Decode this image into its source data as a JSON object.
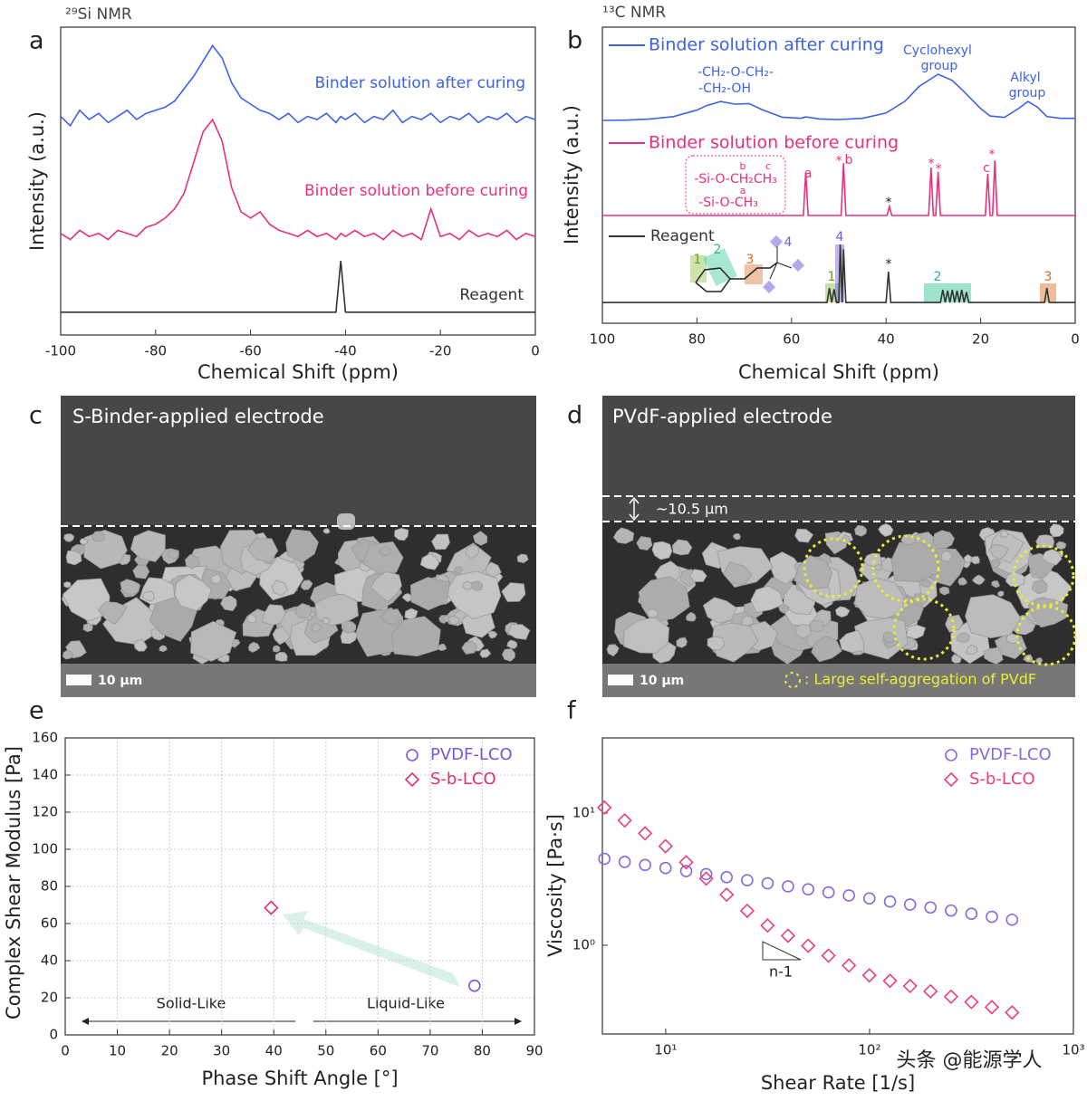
{
  "chart_data": [
    {
      "type": "line",
      "panel": "a",
      "title": "²⁹Si NMR",
      "xlabel": "Chemical Shift (ppm)",
      "ylabel": "Intensity (a.u.)",
      "xlim": [
        -100,
        0
      ],
      "xticks": [
        -100,
        -80,
        -60,
        -40,
        -20,
        0
      ],
      "ylim": [
        0,
        10
      ],
      "series": [
        {
          "name": "Binder solution after curing",
          "color": "#3d62e6",
          "x": [
            -100,
            -98,
            -96,
            -94,
            -92,
            -90,
            -88,
            -86,
            -84,
            -82,
            -80,
            -78,
            -76,
            -74,
            -72,
            -70,
            -68,
            -66,
            -64,
            -62,
            -60,
            -58,
            -56,
            -54,
            -52,
            -50,
            -48,
            -46,
            -44,
            -42,
            -41,
            -40,
            -38,
            -36,
            -34,
            -32,
            -30,
            -28,
            -26,
            -24,
            -22,
            -20,
            -18,
            -16,
            -14,
            -12,
            -10,
            -8,
            -6,
            -4,
            -2,
            0
          ],
          "values": [
            7.1,
            6.8,
            7.3,
            7.0,
            7.2,
            6.9,
            7.1,
            7.3,
            7.0,
            7.2,
            7.3,
            7.4,
            7.6,
            8.0,
            8.4,
            8.9,
            9.4,
            9.0,
            8.2,
            7.7,
            7.5,
            7.3,
            7.2,
            7.0,
            7.2,
            6.9,
            7.1,
            7.0,
            7.2,
            6.9,
            7.1,
            7.0,
            7.2,
            6.9,
            7.1,
            7.0,
            7.3,
            6.9,
            7.1,
            7.0,
            7.2,
            6.9,
            7.1,
            7.0,
            7.2,
            6.9,
            7.1,
            7.0,
            7.2,
            6.9,
            7.1,
            7.0
          ]
        },
        {
          "name": "Binder solution before curing",
          "color": "#e8307f",
          "x": [
            -100,
            -98,
            -96,
            -94,
            -92,
            -90,
            -88,
            -86,
            -84,
            -82,
            -80,
            -78,
            -76,
            -74,
            -72,
            -70,
            -68,
            -66,
            -64,
            -62,
            -60,
            -58,
            -56,
            -54,
            -52,
            -50,
            -48,
            -46,
            -44,
            -42,
            -41,
            -40,
            -38,
            -36,
            -34,
            -32,
            -30,
            -28,
            -26,
            -24,
            -22,
            -20,
            -18,
            -16,
            -14,
            -12,
            -10,
            -8,
            -6,
            -4,
            -2,
            0
          ],
          "values": [
            3.3,
            3.1,
            3.4,
            3.2,
            3.3,
            3.1,
            3.4,
            3.3,
            3.2,
            3.5,
            3.6,
            3.8,
            4.1,
            4.6,
            5.6,
            6.6,
            7.0,
            6.3,
            4.8,
            4.0,
            3.8,
            4.0,
            3.6,
            3.4,
            3.3,
            3.2,
            3.4,
            3.2,
            3.3,
            3.1,
            3.3,
            3.2,
            3.4,
            3.2,
            3.3,
            3.1,
            3.4,
            3.2,
            3.3,
            3.1,
            4.1,
            3.2,
            3.3,
            3.1,
            3.4,
            3.2,
            3.3,
            3.2,
            3.4,
            3.1,
            3.3,
            3.2
          ]
        },
        {
          "name": "Reagent",
          "color": "#333333",
          "x": [
            -100,
            -42,
            -41,
            -40,
            0
          ],
          "values": [
            0.74,
            0.74,
            2.41,
            0.74,
            0.74
          ]
        }
      ]
    },
    {
      "type": "line",
      "panel": "b",
      "title": "¹³C NMR",
      "xlabel": "Chemical Shift (ppm)",
      "ylabel": "Intensity (a.u.)",
      "xlim": [
        100,
        0
      ],
      "xticks": [
        100,
        80,
        60,
        40,
        20,
        0
      ],
      "ylim": [
        0,
        10
      ],
      "series": [
        {
          "name": "Binder solution after curing",
          "color": "#3d62e6",
          "x": [
            100,
            95,
            90,
            85,
            80,
            78,
            75,
            72,
            69,
            66,
            62,
            58,
            57,
            54,
            50,
            45,
            40,
            36,
            33,
            29,
            26,
            24,
            20,
            18,
            15,
            12,
            10,
            8,
            6,
            3,
            0
          ],
          "values": [
            6.85,
            6.86,
            6.9,
            6.98,
            7.2,
            7.35,
            7.49,
            7.4,
            7.42,
            7.2,
            6.96,
            6.92,
            6.97,
            6.9,
            6.88,
            6.92,
            7.1,
            7.5,
            8.0,
            8.41,
            8.2,
            7.9,
            7.25,
            7.0,
            6.95,
            7.25,
            7.49,
            7.3,
            6.98,
            6.92,
            6.92
          ]
        },
        {
          "name": "Binder solution before curing",
          "color": "#e8307f",
          "x": [
            100,
            57.5,
            57,
            56.5,
            49.5,
            49,
            48.5,
            39.8,
            39.3,
            38.8,
            31,
            30.5,
            30,
            29.5,
            29,
            28.5,
            19,
            18.5,
            18,
            17.5,
            17,
            16.5,
            0
          ],
          "values": [
            3.64,
            3.64,
            5.11,
            3.64,
            3.64,
            5.41,
            3.64,
            3.64,
            3.94,
            3.64,
            3.64,
            5.26,
            3.64,
            3.64,
            5.11,
            3.64,
            3.64,
            5.05,
            3.64,
            3.64,
            5.5,
            3.64,
            3.64
          ]
        },
        {
          "name": "Reagent",
          "color": "#333333",
          "x": [
            100,
            52.5,
            52,
            51.5,
            51,
            50.5,
            50,
            49.7,
            49.3,
            49,
            48.5,
            40,
            39.5,
            39,
            28.5,
            28,
            27.5,
            27,
            26.5,
            26,
            25.5,
            25,
            24.5,
            24,
            23.5,
            23,
            22.5,
            6.5,
            6,
            5.5,
            0
          ],
          "values": [
            0.7,
            0.7,
            1.19,
            0.7,
            1.15,
            0.7,
            0.7,
            2.66,
            0.7,
            2.5,
            0.7,
            0.7,
            1.74,
            0.7,
            0.7,
            1.13,
            0.7,
            1.1,
            0.7,
            1.13,
            0.7,
            1.1,
            0.7,
            1.13,
            0.7,
            1.05,
            0.7,
            0.7,
            1.19,
            0.7,
            0.7
          ]
        }
      ],
      "annotations": [
        "-CH₂-O-CH₂-",
        "-CH₂-OH",
        "Cyclohexyl",
        "group",
        "Alkyl",
        "group",
        "a",
        "*",
        "b",
        "*",
        "*",
        "c",
        "*",
        "*",
        "-Si-O-CH₂CH₃",
        "b",
        "c",
        "-Si-O-CH₃",
        "a",
        "1",
        "2",
        "3",
        "4",
        "1",
        "2",
        "3",
        "4",
        "*"
      ]
    },
    {
      "type": "scatter",
      "panel": "e",
      "xlabel": "Phase Shift Angle [°]",
      "ylabel": "Complex Shear Modulus [Pa]",
      "xlim": [
        0,
        90
      ],
      "xticks": [
        0,
        10,
        20,
        30,
        40,
        50,
        60,
        70,
        80,
        90
      ],
      "ylim": [
        0,
        160
      ],
      "yticks": [
        0,
        20,
        40,
        60,
        80,
        100,
        120,
        140,
        160
      ],
      "grid": true,
      "legend": "upper right",
      "series": [
        {
          "name": "PVDF-LCO",
          "color": "#6b5de0",
          "marker": "circle",
          "x": [
            78.5
          ],
          "values": [
            26.5
          ]
        },
        {
          "name": "S-b-LCO",
          "color": "#e0306e",
          "marker": "diamond",
          "x": [
            39.5
          ],
          "values": [
            68.5
          ]
        }
      ],
      "annotations": [
        "Solid-Like",
        "Liquid-Like"
      ]
    },
    {
      "type": "scatter",
      "panel": "f",
      "xlabel": "Shear Rate [1/s]",
      "ylabel": "Viscosity [Pa·s]",
      "xscale": "log",
      "yscale": "log",
      "xlim": [
        4.89,
        1000
      ],
      "xticks": [
        {
          "value": 10,
          "label": "10¹"
        },
        {
          "value": 100,
          "label": "10²"
        },
        {
          "value": 1000,
          "label": "10³"
        }
      ],
      "ylim": [
        0.213,
        37
      ],
      "yticks": [
        {
          "value": 1,
          "label": "10⁰"
        },
        {
          "value": 10,
          "label": "10¹"
        }
      ],
      "grid": false,
      "legend": "upper right",
      "x": [
        5,
        6.29,
        7.92,
        9.98,
        12.6,
        15.8,
        19.9,
        25.1,
        31.6,
        39.8,
        50,
        62.9,
        79.2,
        99.8,
        126,
        158,
        199,
        251,
        316,
        398,
        500
      ],
      "series": [
        {
          "name": "PVDF-LCO",
          "color": "#7b6fe0",
          "marker": "circle",
          "values": [
            4.5,
            4.27,
            4.05,
            3.84,
            3.64,
            3.45,
            3.27,
            3.1,
            2.94,
            2.79,
            2.65,
            2.51,
            2.38,
            2.26,
            2.14,
            2.03,
            1.93,
            1.83,
            1.73,
            1.64,
            1.56
          ]
        },
        {
          "name": "S-b-LCO",
          "color": "#e8407a",
          "marker": "diamond",
          "values": [
            11,
            8.79,
            7.02,
            5.61,
            4.24,
            3.19,
            2.41,
            1.82,
            1.41,
            1.18,
            0.99,
            0.835,
            0.703,
            0.592,
            0.538,
            0.491,
            0.448,
            0.408,
            0.372,
            0.34,
            0.31
          ]
        }
      ],
      "annotations": [
        "n-1"
      ]
    }
  ],
  "panels": {
    "c": {
      "label": "c",
      "title": "S-Binder-applied electrode",
      "scale_bar": "10 μm"
    },
    "d": {
      "label": "d",
      "title": "PVdF-applied electrode",
      "thickness": "~10.5 μm",
      "scale_bar": "10 μm",
      "legend": ": Large self-aggregation of PVdF"
    }
  },
  "watermark": "头条 @能源学人"
}
